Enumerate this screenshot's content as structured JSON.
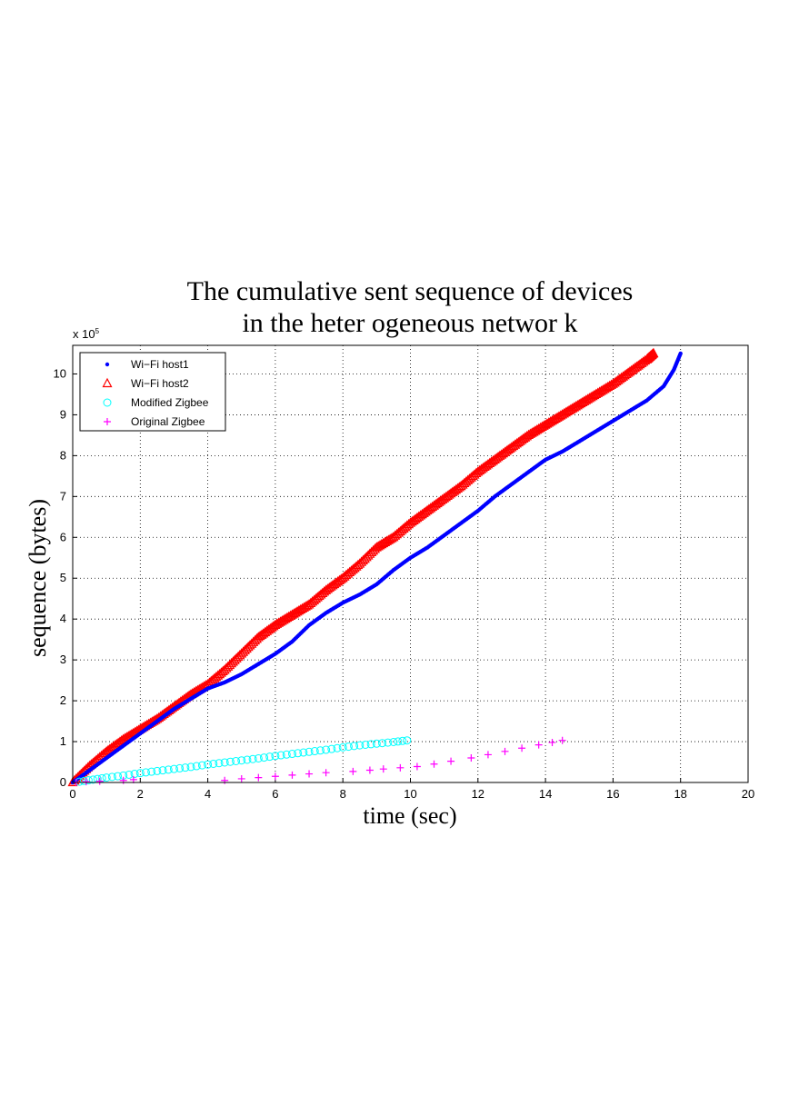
{
  "chart_data": {
    "type": "scatter",
    "title": [
      "The cumulative sent sequence of devices",
      "in the heter ogeneous networ k"
    ],
    "xlabel": "time (sec)",
    "ylabel": "sequence (bytes)",
    "y_exponent_label": "x 10",
    "y_exponent_power": "5",
    "xlim": [
      0,
      20
    ],
    "ylim": [
      0,
      10.7
    ],
    "y_unit_multiplier": 100000,
    "xticks": [
      0,
      2,
      4,
      6,
      8,
      10,
      12,
      14,
      16,
      18,
      20
    ],
    "yticks": [
      0,
      1,
      2,
      3,
      4,
      5,
      6,
      7,
      8,
      9,
      10
    ],
    "grid": true,
    "legend_position": "top-left",
    "series": [
      {
        "name": "Wi−Fi host1",
        "marker": "dot",
        "color": "#0000ff",
        "x": [
          0,
          0.5,
          1,
          1.5,
          2,
          2.5,
          3,
          3.5,
          4,
          4.5,
          5,
          5.5,
          6,
          6.5,
          7,
          7.5,
          8,
          8.5,
          9,
          9.5,
          10,
          10.5,
          11,
          11.5,
          12,
          12.5,
          13,
          13.5,
          14,
          14.5,
          15,
          15.5,
          16,
          16.5,
          17,
          17.5,
          17.8,
          18
        ],
        "y": [
          0,
          0.3,
          0.6,
          0.9,
          1.2,
          1.5,
          1.8,
          2.05,
          2.3,
          2.45,
          2.65,
          2.9,
          3.15,
          3.45,
          3.85,
          4.15,
          4.4,
          4.6,
          4.85,
          5.2,
          5.5,
          5.75,
          6.05,
          6.35,
          6.65,
          7.0,
          7.3,
          7.6,
          7.9,
          8.1,
          8.35,
          8.6,
          8.85,
          9.1,
          9.35,
          9.7,
          10.1,
          10.5
        ]
      },
      {
        "name": "Wi−Fi host2",
        "marker": "triangle",
        "color": "#ff0000",
        "x": [
          0,
          0.5,
          1,
          1.5,
          2,
          2.5,
          3,
          3.5,
          4,
          4.5,
          5,
          5.5,
          6,
          6.5,
          7,
          7.5,
          8,
          8.5,
          9,
          9.5,
          10,
          10.5,
          11,
          11.5,
          12,
          12.5,
          13,
          13.5,
          14,
          14.5,
          15,
          15.5,
          16,
          16.5,
          17,
          17.2
        ],
        "y": [
          0,
          0.4,
          0.75,
          1.05,
          1.3,
          1.55,
          1.85,
          2.15,
          2.4,
          2.75,
          3.15,
          3.55,
          3.85,
          4.1,
          4.35,
          4.7,
          5.0,
          5.35,
          5.75,
          6.0,
          6.35,
          6.65,
          6.95,
          7.25,
          7.6,
          7.9,
          8.2,
          8.5,
          8.75,
          9.0,
          9.25,
          9.5,
          9.75,
          10.05,
          10.35,
          10.5
        ]
      },
      {
        "name": "Modified Zigbee",
        "marker": "circle",
        "color": "#00ffff",
        "x": [
          0.2,
          0.6,
          1.0,
          1.5,
          2.0,
          2.5,
          3.0,
          3.5,
          4.0,
          4.5,
          5.0,
          5.5,
          6.0,
          6.5,
          7.0,
          7.5,
          8.0,
          8.5,
          9.0,
          9.5,
          9.9
        ],
        "y": [
          0.02,
          0.07,
          0.12,
          0.17,
          0.23,
          0.28,
          0.33,
          0.38,
          0.44,
          0.49,
          0.54,
          0.59,
          0.65,
          0.7,
          0.75,
          0.8,
          0.86,
          0.91,
          0.95,
          0.99,
          1.03
        ]
      },
      {
        "name": "Original Zigbee",
        "marker": "plus",
        "color": "#ff00ff",
        "x": [
          0.1,
          0.4,
          0.8,
          1.5,
          1.8,
          4.5,
          5.0,
          5.5,
          6.0,
          6.5,
          7.0,
          7.5,
          8.3,
          8.8,
          9.2,
          9.7,
          10.2,
          10.7,
          11.2,
          11.8,
          12.3,
          12.8,
          13.3,
          13.8,
          14.2,
          14.5
        ],
        "y": [
          0.0,
          0.02,
          0.03,
          0.05,
          0.07,
          0.05,
          0.09,
          0.12,
          0.15,
          0.18,
          0.21,
          0.24,
          0.27,
          0.3,
          0.33,
          0.36,
          0.39,
          0.45,
          0.52,
          0.6,
          0.68,
          0.76,
          0.84,
          0.92,
          0.98,
          1.03
        ]
      }
    ]
  }
}
